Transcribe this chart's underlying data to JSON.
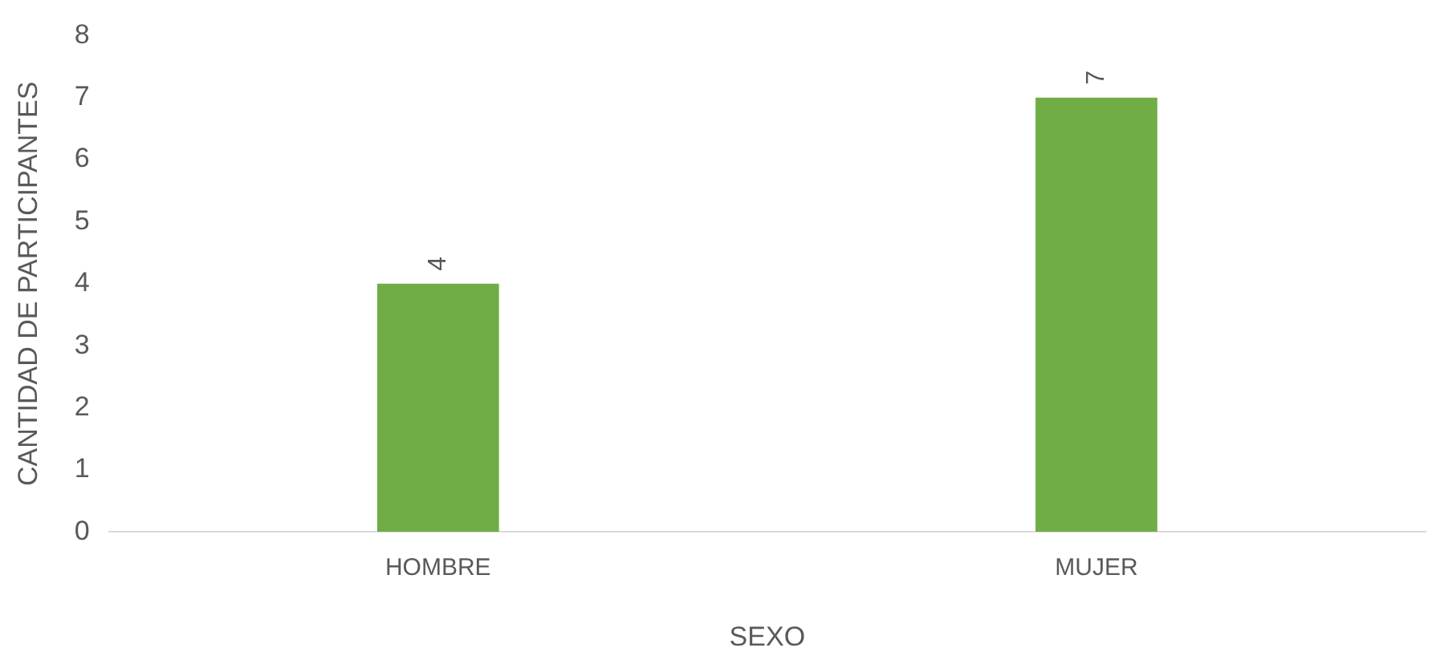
{
  "chart_data": {
    "type": "bar",
    "xlabel": "SEXO",
    "ylabel": "CANTIDAD DE PARTICIPANTES",
    "categories": [
      "HOMBRE",
      "MUJER"
    ],
    "values": [
      4,
      7
    ],
    "color": "#70ad47",
    "ylim": [
      0,
      8
    ],
    "yticks": [
      0,
      1,
      2,
      3,
      4,
      5,
      6,
      7,
      8
    ],
    "grid": false,
    "legend": false,
    "data_labels": true
  }
}
